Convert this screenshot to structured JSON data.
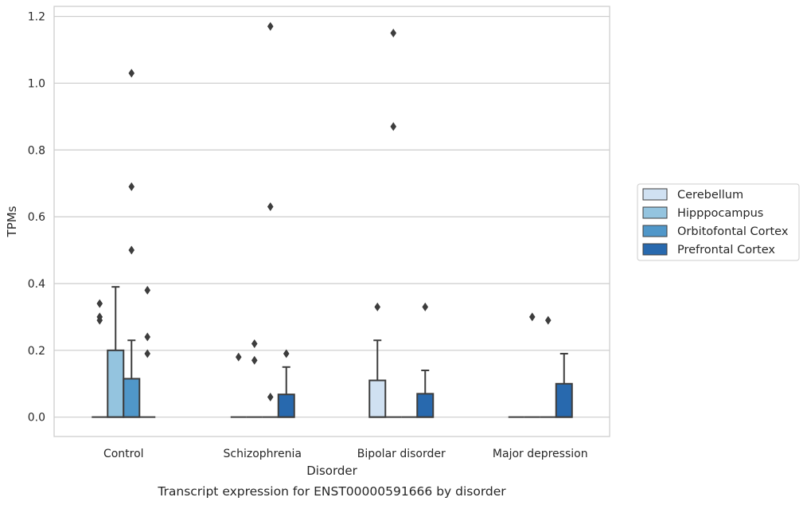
{
  "caption": "Transcript expression for ENST00000591666 by disorder",
  "chart_data": {
    "type": "box",
    "xlabel": "Disorder",
    "ylabel": "TPMs",
    "ylim": [
      -0.058,
      1.23
    ],
    "yticks": [
      "0.0",
      "0.2",
      "0.4",
      "0.6",
      "0.8",
      "1.0",
      "1.2"
    ],
    "categories": [
      "Control",
      "Schizophrenia",
      "Bipolar disorder",
      "Major depression"
    ],
    "grid": "horizontal",
    "legend_placement": "center-right",
    "series": [
      {
        "name": "Cerebellum",
        "color": "#d0e1f2",
        "boxes": [
          {
            "q1": 0,
            "median": 0,
            "q3": 0,
            "whisker_low": 0,
            "whisker_high": 0,
            "outliers": [
              0.34,
              0.3,
              0.29
            ]
          },
          {
            "q1": 0,
            "median": 0,
            "q3": 0,
            "whisker_low": 0,
            "whisker_high": 0,
            "outliers": [
              0.18
            ]
          },
          {
            "q1": 0,
            "median": 0,
            "q3": 0.11,
            "whisker_low": 0,
            "whisker_high": 0.23,
            "outliers": [
              0.33
            ]
          },
          {
            "q1": 0,
            "median": 0,
            "q3": 0,
            "whisker_low": 0,
            "whisker_high": 0,
            "outliers": []
          }
        ]
      },
      {
        "name": "Hipppocampus",
        "color": "#94c4df",
        "boxes": [
          {
            "q1": 0,
            "median": 0,
            "q3": 0.2,
            "whisker_low": 0,
            "whisker_high": 0.39,
            "outliers": []
          },
          {
            "q1": 0,
            "median": 0,
            "q3": 0,
            "whisker_low": 0,
            "whisker_high": 0,
            "outliers": [
              0.22,
              0.17
            ]
          },
          {
            "q1": 0,
            "median": 0,
            "q3": 0,
            "whisker_low": 0,
            "whisker_high": 0,
            "outliers": [
              0.87,
              1.15
            ]
          },
          {
            "q1": 0,
            "median": 0,
            "q3": 0,
            "whisker_low": 0,
            "whisker_high": 0,
            "outliers": [
              0.3
            ]
          }
        ]
      },
      {
        "name": "Orbitofontal Cortex",
        "color": "#5097c9",
        "boxes": [
          {
            "q1": 0,
            "median": 0,
            "q3": 0.115,
            "whisker_low": 0,
            "whisker_high": 0.23,
            "outliers": [
              1.03,
              0.69,
              0.5
            ]
          },
          {
            "q1": 0,
            "median": 0,
            "q3": 0,
            "whisker_low": 0,
            "whisker_high": 0,
            "outliers": [
              1.17,
              0.63,
              0.06
            ]
          },
          {
            "q1": 0,
            "median": 0,
            "q3": 0,
            "whisker_low": 0,
            "whisker_high": 0,
            "outliers": []
          },
          {
            "q1": 0,
            "median": 0,
            "q3": 0,
            "whisker_low": 0,
            "whisker_high": 0,
            "outliers": [
              0.29
            ]
          }
        ]
      },
      {
        "name": "Prefrontal Cortex",
        "color": "#2869ae",
        "boxes": [
          {
            "q1": 0,
            "median": 0,
            "q3": 0,
            "whisker_low": 0,
            "whisker_high": 0,
            "outliers": [
              0.38,
              0.24,
              0.19
            ]
          },
          {
            "q1": 0,
            "median": 0,
            "q3": 0.068,
            "whisker_low": 0,
            "whisker_high": 0.15,
            "outliers": [
              0.19
            ]
          },
          {
            "q1": 0,
            "median": 0,
            "q3": 0.07,
            "whisker_low": 0,
            "whisker_high": 0.14,
            "outliers": [
              0.33
            ]
          },
          {
            "q1": 0,
            "median": 0,
            "q3": 0.1,
            "whisker_low": 0,
            "whisker_high": 0.19,
            "outliers": []
          }
        ]
      }
    ]
  }
}
